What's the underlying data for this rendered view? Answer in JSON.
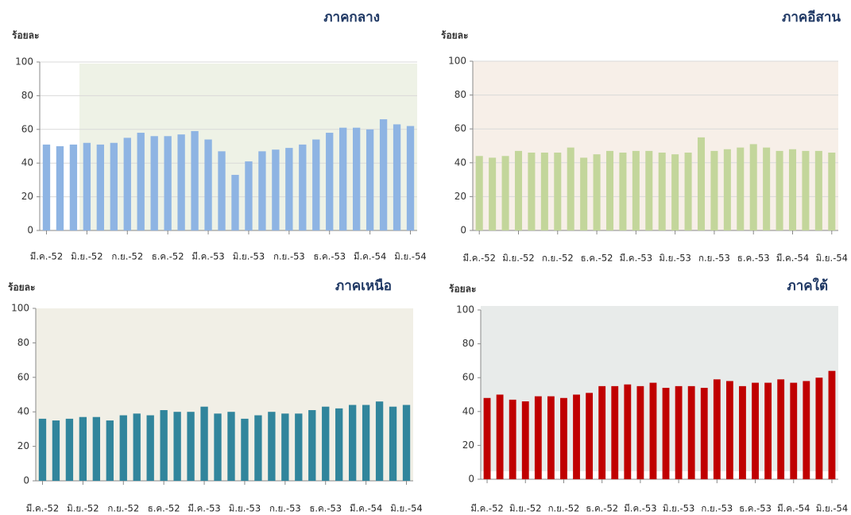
{
  "chart_data": [
    {
      "type": "bar",
      "title": "ภาคกลาง",
      "y_label": "ร้อยละ",
      "color": "#8eb4e3",
      "grid": true,
      "categories": [
        "มี.ค.-52",
        null,
        null,
        "มิ.ย.-52",
        null,
        null,
        "ก.ย.-52",
        null,
        null,
        "ธ.ค.-52",
        null,
        null,
        "มี.ค.-53",
        null,
        null,
        "มิ.ย.-53",
        null,
        null,
        "ก.ย.-53",
        null,
        null,
        "ธ.ค.-53",
        null,
        null,
        "มี.ค.-54",
        null,
        null,
        "มิ.ย.-54"
      ],
      "values": [
        51,
        50,
        51,
        52,
        51,
        52,
        55,
        58,
        56,
        56,
        57,
        59,
        54,
        47,
        33,
        41,
        47,
        48,
        49,
        51,
        54,
        58,
        61,
        61,
        60,
        66,
        63,
        62
      ],
      "ylim": [
        0,
        100
      ],
      "yticks": [
        0,
        20,
        40,
        60,
        80,
        100
      ]
    },
    {
      "type": "bar",
      "title": "ภาคอีสาน",
      "y_label": "ร้อยละ",
      "color": "#c3d69b",
      "grid": true,
      "categories": [
        "มี.ค.-52",
        null,
        null,
        "มิ.ย.-52",
        null,
        null,
        "ก.ย.-52",
        null,
        null,
        "ธ.ค.-52",
        null,
        null,
        "มี.ค.-53",
        null,
        null,
        "มิ.ย.-53",
        null,
        null,
        "ก.ย.-53",
        null,
        null,
        "ธ.ค.-53",
        null,
        null,
        "มี.ค.-54",
        null,
        null,
        "มิ.ย.-54"
      ],
      "values": [
        44,
        43,
        44,
        47,
        46,
        46,
        46,
        49,
        43,
        45,
        47,
        46,
        47,
        47,
        46,
        45,
        46,
        55,
        47,
        48,
        49,
        51,
        49,
        47,
        48,
        47,
        47,
        46
      ],
      "ylim": [
        0,
        100
      ],
      "yticks": [
        0,
        20,
        40,
        60,
        80,
        100
      ]
    },
    {
      "type": "bar",
      "title": "ภาคเหนือ",
      "y_label": "ร้อยละ",
      "color": "#31859c",
      "grid": false,
      "categories": [
        "มี.ค.-52",
        null,
        null,
        "มิ.ย.-52",
        null,
        null,
        "ก.ย.-52",
        null,
        null,
        "ธ.ค.-52",
        null,
        null,
        "มี.ค.-53",
        null,
        null,
        "มิ.ย.-53",
        null,
        null,
        "ก.ย.-53",
        null,
        null,
        "ธ.ค.-53",
        null,
        null,
        "มี.ค.-54",
        null,
        null,
        "มิ.ย.-54"
      ],
      "values": [
        36,
        35,
        36,
        37,
        37,
        35,
        38,
        39,
        38,
        41,
        40,
        40,
        43,
        39,
        40,
        36,
        38,
        40,
        39,
        39,
        41,
        43,
        42,
        44,
        44,
        46,
        43,
        44
      ],
      "ylim": [
        0,
        100
      ],
      "yticks": [
        0,
        20,
        40,
        60,
        80,
        100
      ]
    },
    {
      "type": "bar",
      "title": "ภาคใต้",
      "y_label": "ร้อยละ",
      "color": "#c00000",
      "grid": false,
      "categories": [
        "มี.ค.-52",
        null,
        null,
        "มิ.ย.-52",
        null,
        null,
        "ก.ย.-52",
        null,
        null,
        "ธ.ค.-52",
        null,
        null,
        "มี.ค.-53",
        null,
        null,
        "มิ.ย.-53",
        null,
        null,
        "ก.ย.-53",
        null,
        null,
        "ธ.ค.-53",
        null,
        null,
        "มี.ค.-54",
        null,
        null,
        "มิ.ย.-54"
      ],
      "values": [
        48,
        50,
        47,
        46,
        49,
        49,
        48,
        50,
        51,
        55,
        55,
        56,
        55,
        57,
        54,
        55,
        55,
        54,
        59,
        58,
        55,
        57,
        57,
        59,
        57,
        58,
        60,
        64
      ],
      "ylim": [
        0,
        100
      ],
      "yticks": [
        0,
        20,
        40,
        60,
        80,
        100
      ]
    }
  ]
}
